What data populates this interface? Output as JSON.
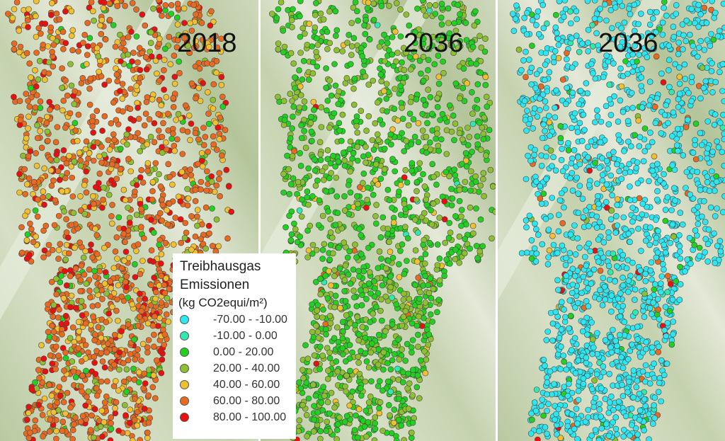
{
  "panels": [
    {
      "title": "2018",
      "shares": [
        0,
        0,
        0.04,
        0.1,
        0.2,
        0.55,
        0.11
      ]
    },
    {
      "title": "2036",
      "shares": [
        0,
        0.01,
        0.55,
        0.4,
        0.03,
        0.005,
        0.005
      ]
    },
    {
      "title": "2036",
      "shares": [
        0.9,
        0.02,
        0.03,
        0.01,
        0.01,
        0.02,
        0.01
      ]
    }
  ],
  "legend": {
    "title_line1": "Treibhausgas",
    "title_line2": "Emissionen",
    "unit": "(kg CO2equi/m²)",
    "classes": [
      {
        "label": "-70.00 - -10.00",
        "color": "#2ee6f0"
      },
      {
        "label": "-10.00 - 0.00",
        "color": "#30e8b0"
      },
      {
        "label": "0.00 - 20.00",
        "color": "#22d022"
      },
      {
        "label": "20.00 - 40.00",
        "color": "#8cc030"
      },
      {
        "label": "40.00 - 60.00",
        "color": "#f0c030"
      },
      {
        "label": "60.00 - 80.00",
        "color": "#e86a20"
      },
      {
        "label": "80.00 - 100.00",
        "color": "#e81010"
      }
    ]
  }
}
